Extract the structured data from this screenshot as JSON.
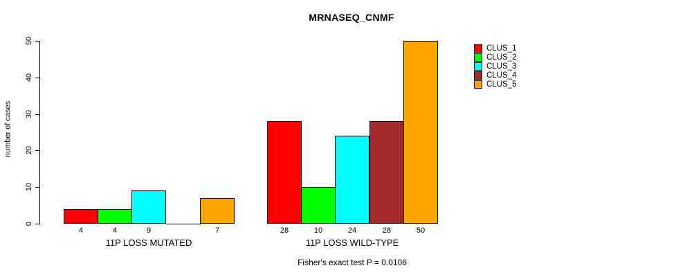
{
  "chart_data": {
    "type": "bar",
    "title": "MRNASEQ_CNMF",
    "ylabel": "number of cases",
    "ylim": [
      0,
      50
    ],
    "yticks": [
      0,
      10,
      20,
      30,
      40,
      50
    ],
    "categories": [
      "11P LOSS MUTATED",
      "11P LOSS WILD-TYPE"
    ],
    "series": [
      {
        "name": "CLUS_1",
        "color": "#FF0000",
        "values": [
          4,
          28
        ]
      },
      {
        "name": "CLUS_2",
        "color": "#00FF00",
        "values": [
          4,
          10
        ]
      },
      {
        "name": "CLUS_3",
        "color": "#00FFFF",
        "values": [
          9,
          24
        ]
      },
      {
        "name": "CLUS_4",
        "color": "#A52A2A",
        "values": [
          0,
          28
        ]
      },
      {
        "name": "CLUS_5",
        "color": "#FFA500",
        "values": [
          7,
          50
        ]
      }
    ],
    "bar_value_labels": true,
    "legend_position": "right",
    "grid": false,
    "annotation": "Fisher's exact test P = 0.0106"
  }
}
